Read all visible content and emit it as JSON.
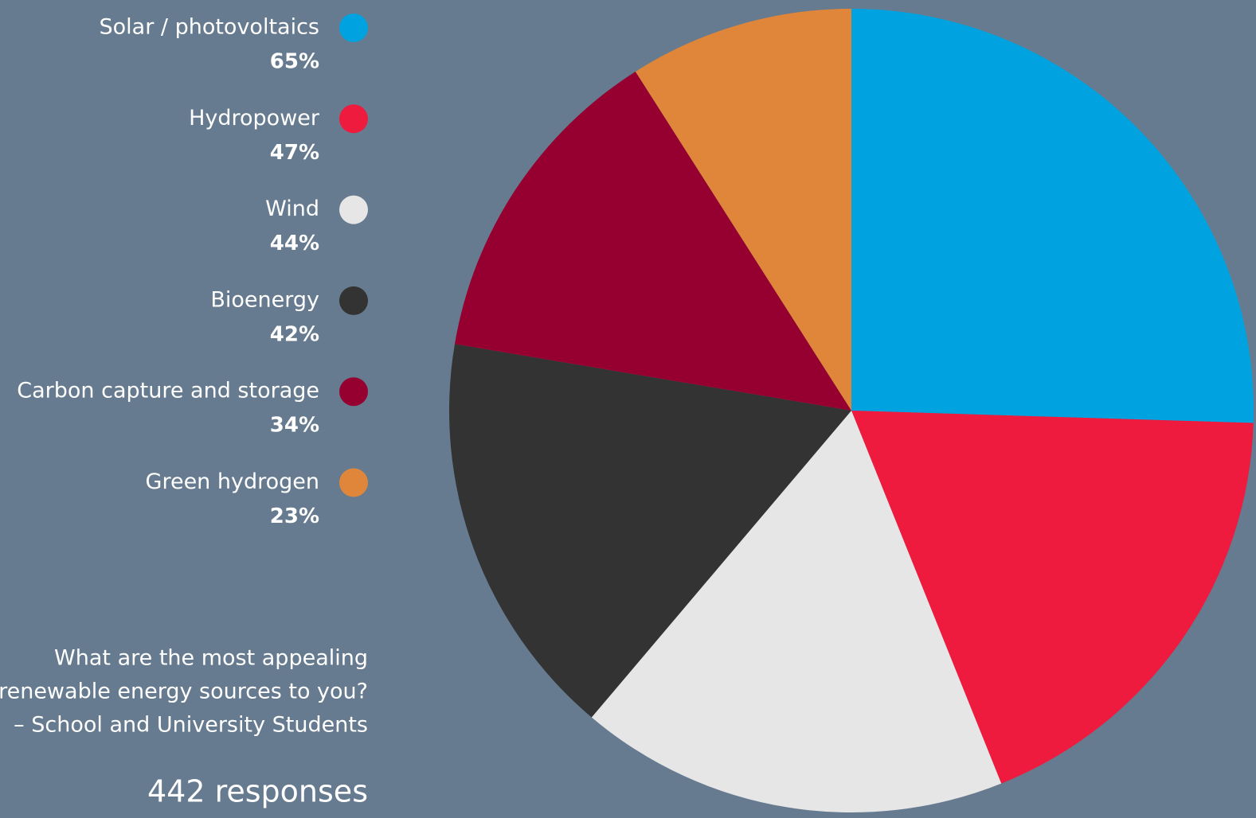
{
  "chart_data": {
    "type": "pie",
    "title": [
      "What are the most appealing",
      "renewable energy sources to you?"
    ],
    "subtitle": "– School and University Students",
    "annotation": "442 responses",
    "categories": [
      "Solar / photovoltaics",
      "Hydropower",
      "Wind",
      "Bioenergy",
      "Carbon capture and storage",
      "Green hydrogen"
    ],
    "values": [
      65,
      47,
      44,
      42,
      34,
      23
    ],
    "value_labels": [
      "65%",
      "47%",
      "44%",
      "42%",
      "34%",
      "23%"
    ],
    "colors": [
      "#00a3e0",
      "#ee1b3e",
      "#e6e6e6",
      "#333333",
      "#960030",
      "#e0863a"
    ],
    "legend": "left"
  }
}
